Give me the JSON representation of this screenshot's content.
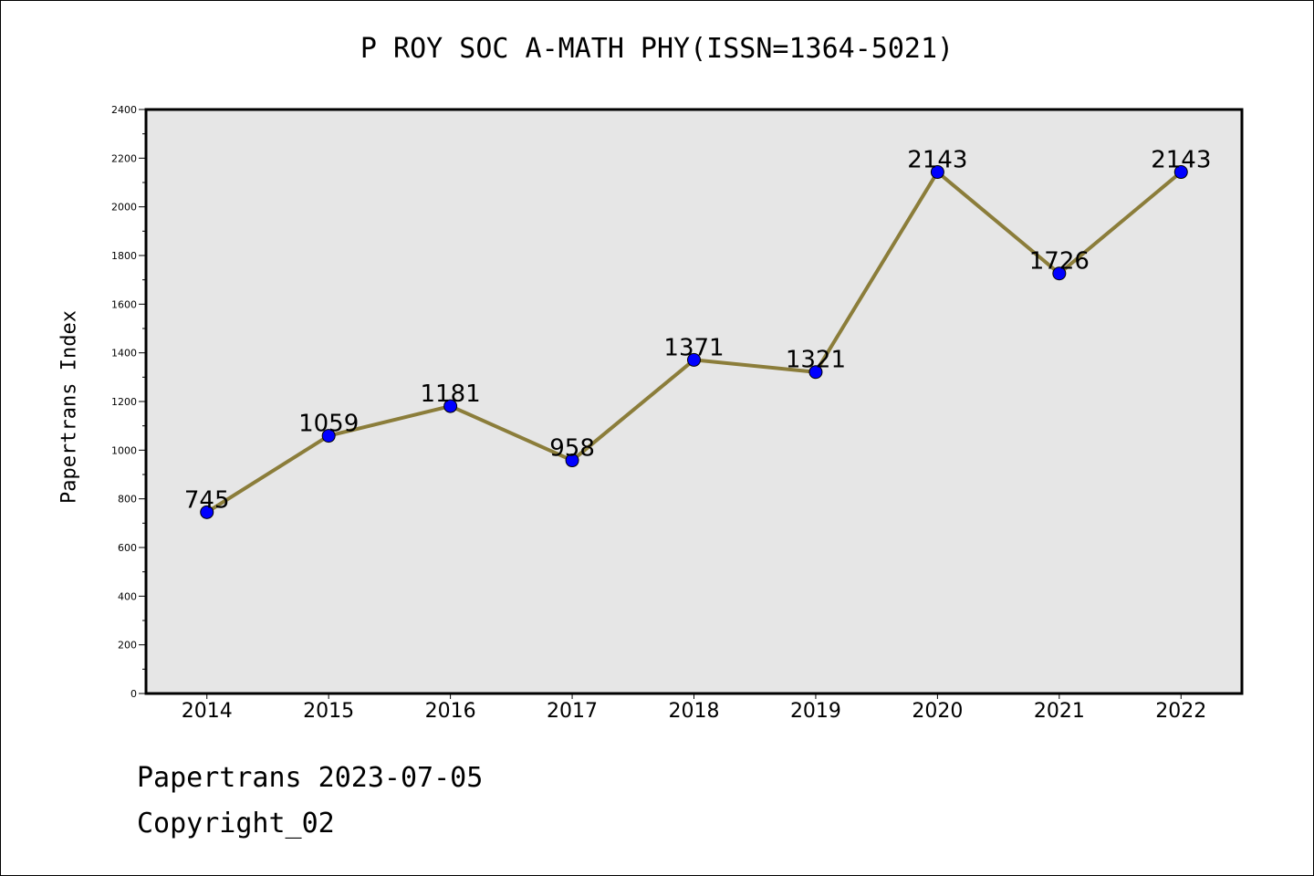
{
  "chart_data": {
    "type": "line",
    "title": "P ROY SOC A-MATH PHY(ISSN=1364-5021)",
    "xlabel": "",
    "ylabel": "Papertrans Index",
    "categories": [
      "2014",
      "2015",
      "2016",
      "2017",
      "2018",
      "2019",
      "2020",
      "2021",
      "2022"
    ],
    "series": [
      {
        "values": [
          745,
          1059,
          1181,
          958,
          1371,
          1321,
          2143,
          1726,
          2143
        ]
      }
    ],
    "data_labels": [
      "745",
      "1059",
      "1181",
      "958",
      "1371",
      "1321",
      "2143",
      "1726",
      "2143"
    ],
    "ylim": [
      0,
      2400
    ],
    "yticks": [
      0,
      200,
      400,
      600,
      800,
      1000,
      1200,
      1400,
      1600,
      1800,
      2000,
      2200,
      2400
    ],
    "ytick_labels": [
      "0",
      "200",
      "400",
      "600",
      "800",
      "1000",
      "1200",
      "1400",
      "1600",
      "1800",
      "2000",
      "2200",
      "2400"
    ],
    "grid": false,
    "line_color": "#8b7d3a",
    "marker_color": "#0000ff",
    "plot_background": "#e6e6e6"
  },
  "footer": {
    "line1": "Papertrans 2023-07-05",
    "line2": "Copyright_02"
  }
}
